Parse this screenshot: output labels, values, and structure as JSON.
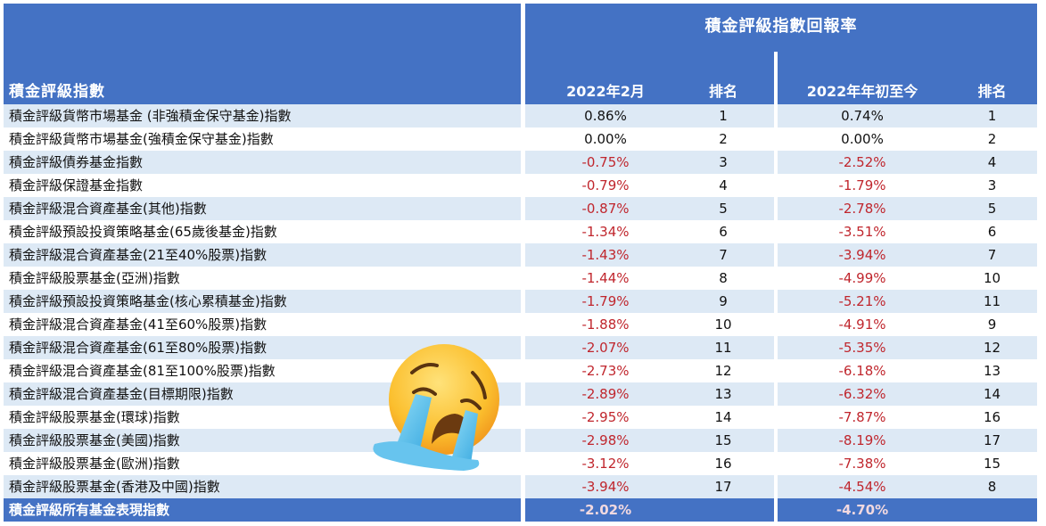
{
  "header": {
    "index_column": "積金評級指數",
    "group_title": "積金評級指數回報率",
    "columns": [
      "2022年2月",
      "排名",
      "2022年年初至今",
      "排名"
    ]
  },
  "colors": {
    "header_bg": "#4472c4",
    "row_alt_bg": "#dde9f5",
    "negative_text": "#c0262d"
  },
  "rows": [
    {
      "name": "積金評級貨幣市場基金 (非強積金保守基金)指數",
      "feb": "0.86%",
      "feb_rank": "1",
      "ytd": "0.74%",
      "ytd_rank": "1"
    },
    {
      "name": "積金評級貨幣市場基金(強積金保守基金)指數",
      "feb": "0.00%",
      "feb_rank": "2",
      "ytd": "0.00%",
      "ytd_rank": "2"
    },
    {
      "name": "積金評級債券基金指數",
      "feb": "-0.75%",
      "feb_rank": "3",
      "ytd": "-2.52%",
      "ytd_rank": "4"
    },
    {
      "name": "積金評級保證基金指數",
      "feb": "-0.79%",
      "feb_rank": "4",
      "ytd": "-1.79%",
      "ytd_rank": "3"
    },
    {
      "name": "積金評級混合資產基金(其他)指數",
      "feb": "-0.87%",
      "feb_rank": "5",
      "ytd": "-2.78%",
      "ytd_rank": "5"
    },
    {
      "name": "積金評級預設投資策略基金(65歲後基金)指數",
      "feb": "-1.34%",
      "feb_rank": "6",
      "ytd": "-3.51%",
      "ytd_rank": "6"
    },
    {
      "name": "積金評級混合資產基金(21至40%股票)指數",
      "feb": "-1.43%",
      "feb_rank": "7",
      "ytd": "-3.94%",
      "ytd_rank": "7"
    },
    {
      "name": "積金評級股票基金(亞洲)指數",
      "feb": "-1.44%",
      "feb_rank": "8",
      "ytd": "-4.99%",
      "ytd_rank": "10"
    },
    {
      "name": "積金評級預設投資策略基金(核心累積基金)指數",
      "feb": "-1.79%",
      "feb_rank": "9",
      "ytd": "-5.21%",
      "ytd_rank": "11"
    },
    {
      "name": "積金評級混合資產基金(41至60%股票)指數",
      "feb": "-1.88%",
      "feb_rank": "10",
      "ytd": "-4.91%",
      "ytd_rank": "9"
    },
    {
      "name": "積金評級混合資產基金(61至80%股票)指數",
      "feb": "-2.07%",
      "feb_rank": "11",
      "ytd": "-5.35%",
      "ytd_rank": "12"
    },
    {
      "name": "積金評級混合資產基金(81至100%股票)指數",
      "feb": "-2.73%",
      "feb_rank": "12",
      "ytd": "-6.18%",
      "ytd_rank": "13"
    },
    {
      "name": "積金評級混合資產基金(目標期限)指數",
      "feb": "-2.89%",
      "feb_rank": "13",
      "ytd": "-6.32%",
      "ytd_rank": "14"
    },
    {
      "name": "積金評級股票基金(環球)指數",
      "feb": "-2.95%",
      "feb_rank": "14",
      "ytd": "-7.87%",
      "ytd_rank": "16"
    },
    {
      "name": "積金評級股票基金(美國)指數",
      "feb": "-2.98%",
      "feb_rank": "15",
      "ytd": "-8.19%",
      "ytd_rank": "17"
    },
    {
      "name": "積金評級股票基金(歐洲)指數",
      "feb": "-3.12%",
      "feb_rank": "16",
      "ytd": "-7.38%",
      "ytd_rank": "15"
    },
    {
      "name": "積金評級股票基金(香港及中國)指數",
      "feb": "-3.94%",
      "feb_rank": "17",
      "ytd": "-4.54%",
      "ytd_rank": "8"
    }
  ],
  "total": {
    "name": "積金評級所有基金表現指數",
    "feb": "-2.02%",
    "ytd": "-4.70%"
  },
  "overlay": {
    "icon": "loudly-crying-face-emoji"
  }
}
